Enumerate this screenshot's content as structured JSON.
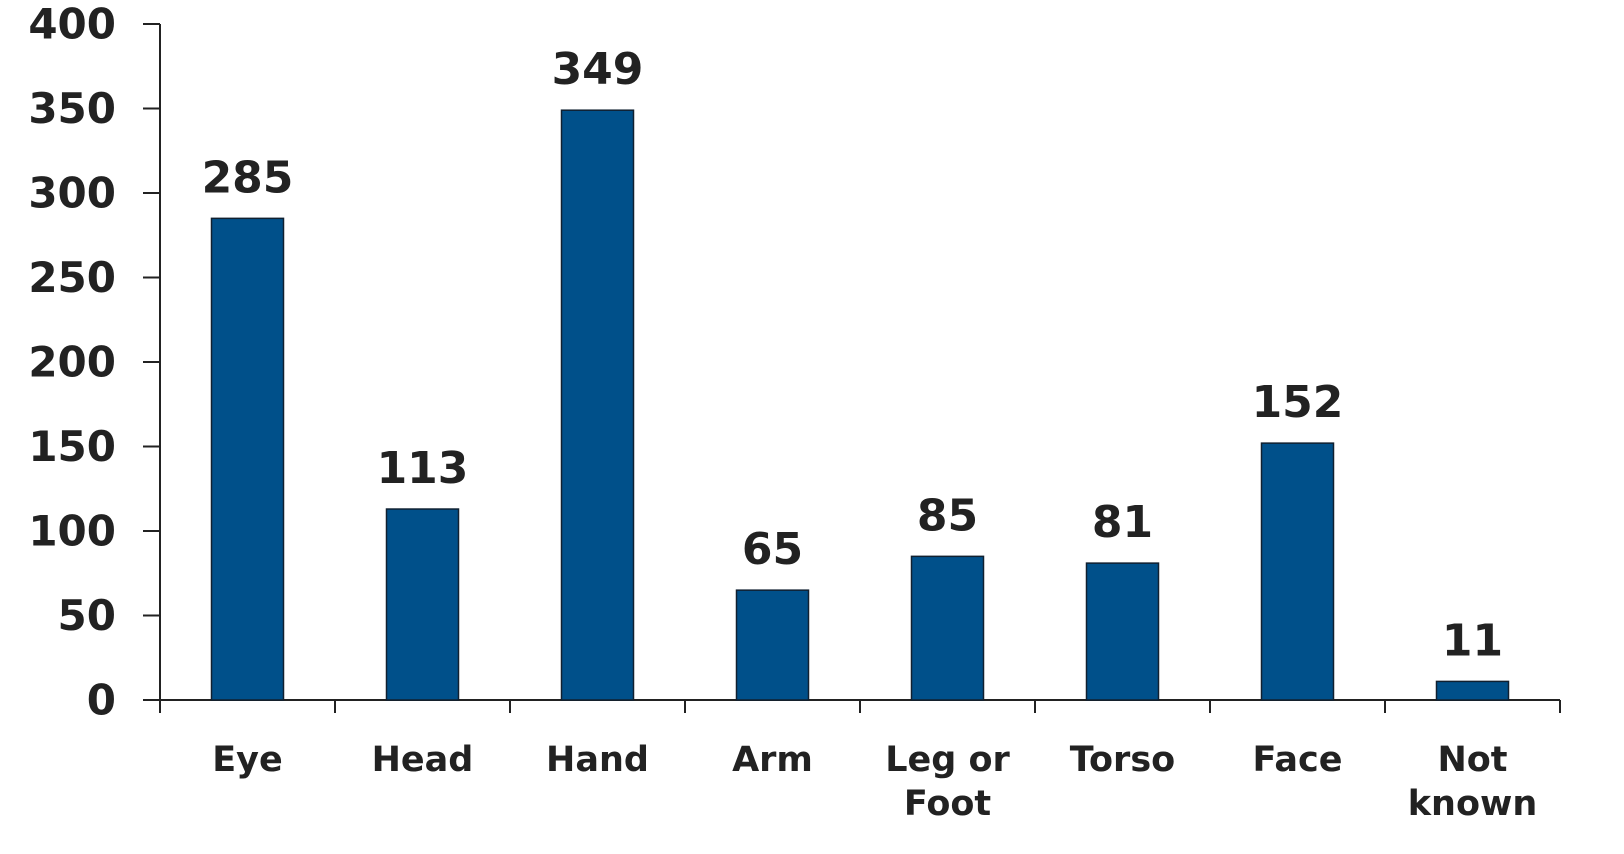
{
  "chart_data": {
    "type": "bar",
    "categories": [
      "Eye",
      "Head",
      "Hand",
      "Arm",
      "Leg or Foot",
      "Torso",
      "Face",
      "Not known"
    ],
    "values": [
      285,
      113,
      349,
      65,
      85,
      81,
      152,
      11
    ],
    "color": "#00508a",
    "ylim": [
      0,
      400
    ],
    "yticks": [
      0,
      50,
      100,
      150,
      200,
      250,
      300,
      350,
      400
    ],
    "grid": false
  }
}
